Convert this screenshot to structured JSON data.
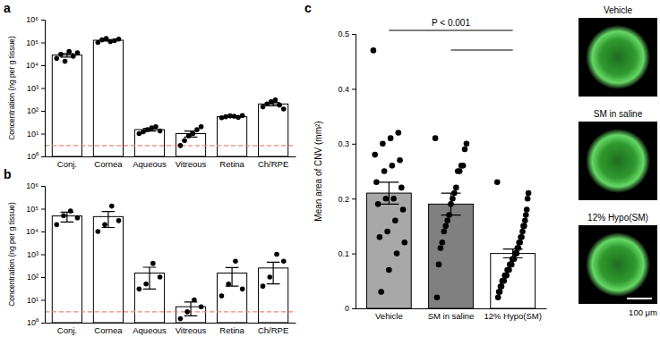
{
  "chart_data": [
    {
      "type": "bar",
      "title": "a",
      "ylabel": "Concentration (ng per g tissue)",
      "categories": [
        "Conj.",
        "Cornea",
        "Aqueous",
        "Vitreous",
        "Retina",
        "Ch/RPE"
      ],
      "values": [
        28000,
        125000,
        15,
        10,
        55,
        200
      ],
      "errors": [
        5000,
        9000,
        2,
        3,
        3,
        35
      ],
      "points": [
        [
          20000,
          30000,
          15000,
          40000,
          25000,
          35000
        ],
        [
          100000,
          130000,
          150000,
          110000,
          120000,
          140000
        ],
        [
          10,
          12,
          15,
          18,
          20,
          13
        ],
        [
          3,
          5,
          8,
          10,
          15,
          20
        ],
        [
          50,
          55,
          60,
          58,
          52,
          62
        ],
        [
          150,
          200,
          250,
          300,
          180,
          120
        ]
      ],
      "color": "#ffffff",
      "log": "y",
      "ylim": [
        1,
        1000000
      ],
      "yticks": [
        {
          "value": 1,
          "label": "10⁰"
        },
        {
          "value": 10,
          "label": "10¹"
        },
        {
          "value": 100,
          "label": "10²"
        },
        {
          "value": 1000,
          "label": "10³"
        },
        {
          "value": 10000,
          "label": "10⁴"
        },
        {
          "value": 100000,
          "label": "10⁵"
        },
        {
          "value": 1000000,
          "label": "10⁶"
        }
      ],
      "hline": {
        "value": 3,
        "color": "#ef8374",
        "line_style": "dashed"
      }
    },
    {
      "type": "bar",
      "title": "b",
      "ylabel": "Concentration (ng per g tissue)",
      "categories": [
        "Conj.",
        "Cornea",
        "Aqueous",
        "Vitreous",
        "Retina",
        "Ch/RPE"
      ],
      "values": [
        48000,
        45000,
        150,
        5,
        150,
        250
      ],
      "errors": [
        22000,
        30000,
        120,
        3,
        110,
        200
      ],
      "points": [
        [
          20000,
          50000,
          80000,
          40000
        ],
        [
          10000,
          20000,
          130000,
          30000
        ],
        [
          30,
          50,
          400,
          100
        ],
        [
          1.5,
          3,
          10,
          5
        ],
        [
          15,
          50,
          500,
          30
        ],
        [
          40,
          100,
          1000,
          500
        ]
      ],
      "color": "#ffffff",
      "log": "y",
      "ylim": [
        1,
        1000000
      ],
      "yticks": [
        {
          "value": 1,
          "label": "10⁰"
        },
        {
          "value": 10,
          "label": "10¹"
        },
        {
          "value": 100,
          "label": "10²"
        },
        {
          "value": 1000,
          "label": "10³"
        },
        {
          "value": 10000,
          "label": "10⁴"
        },
        {
          "value": 100000,
          "label": "10⁵"
        },
        {
          "value": 1000000,
          "label": "10⁶"
        }
      ],
      "hline": {
        "value": 3,
        "color": "#ef8374",
        "line_style": "dashed"
      }
    },
    {
      "type": "bar",
      "title": "c",
      "ylabel": "Mean area of CNV (mm²)",
      "categories": [
        "Vehicle",
        "SM in saline",
        "12% Hypo(SM)"
      ],
      "values": [
        0.21,
        0.19,
        0.1
      ],
      "errors": [
        0.02,
        0.02,
        0.008
      ],
      "points": [
        [
          0.47,
          0.32,
          0.31,
          0.3,
          0.28,
          0.27,
          0.26,
          0.25,
          0.23,
          0.22,
          0.2,
          0.2,
          0.19,
          0.18,
          0.16,
          0.14,
          0.13,
          0.12,
          0.1,
          0.07,
          0.03
        ],
        [
          0.31,
          0.3,
          0.29,
          0.26,
          0.26,
          0.25,
          0.25,
          0.22,
          0.21,
          0.2,
          0.19,
          0.17,
          0.16,
          0.15,
          0.14,
          0.12,
          0.11,
          0.08,
          0.02
        ],
        [
          0.23,
          0.21,
          0.2,
          0.18,
          0.17,
          0.16,
          0.15,
          0.15,
          0.14,
          0.13,
          0.13,
          0.12,
          0.12,
          0.11,
          0.11,
          0.1,
          0.1,
          0.1,
          0.09,
          0.09,
          0.09,
          0.08,
          0.08,
          0.08,
          0.07,
          0.07,
          0.07,
          0.06,
          0.06,
          0.06,
          0.05,
          0.05,
          0.05,
          0.04,
          0.04,
          0.03,
          0.03,
          0.02
        ]
      ],
      "colors": [
        "#a8a8a8",
        "#808080",
        "#ffffff"
      ],
      "ylim": [
        0,
        0.5
      ],
      "yticks": [
        0,
        0.1,
        0.2,
        0.3,
        0.4,
        0.5
      ],
      "significance": {
        "text": "P < 0.001",
        "pairs": [
          [
            0,
            2
          ],
          [
            1,
            2
          ]
        ]
      },
      "images": [
        "Vehicle",
        "SM in saline",
        "12% Hypo(SM)"
      ],
      "scale_bar": "100 μm"
    }
  ]
}
